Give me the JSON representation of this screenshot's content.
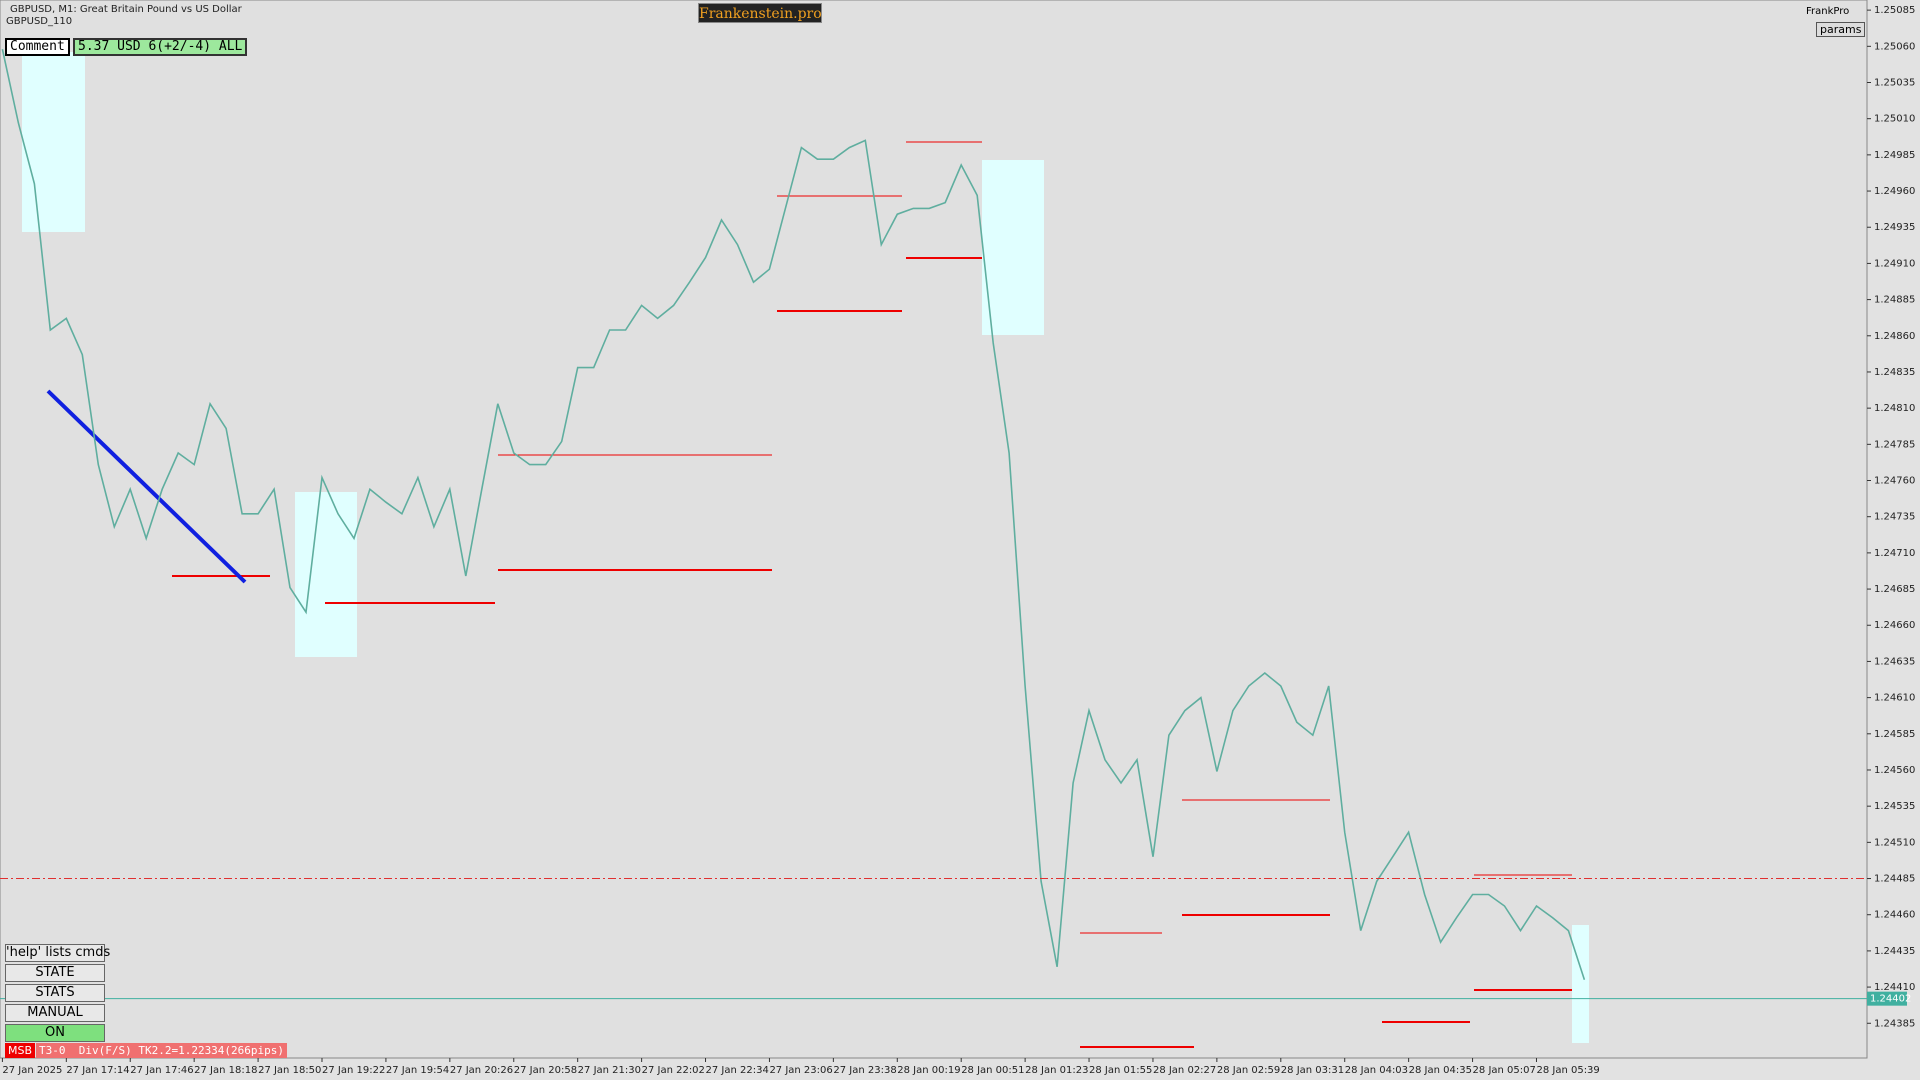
{
  "chart_data": {
    "type": "line",
    "title": "GBPUSD, M1:  Great Britain Pound vs US Dollar",
    "subtitle": "GBPUSD_110",
    "categories": [
      "27 Jan 2025",
      null,
      null,
      null,
      "27 Jan 17:14",
      null,
      null,
      null,
      "27 Jan 17:46",
      null,
      null,
      null,
      "27 Jan 18:18",
      null,
      null,
      null,
      "27 Jan 18:50",
      null,
      null,
      null,
      "27 Jan 19:22",
      null,
      null,
      null,
      "27 Jan 19:54",
      null,
      null,
      null,
      "27 Jan 20:26",
      null,
      null,
      null,
      "27 Jan 20:58",
      null,
      null,
      null,
      "27 Jan 21:30",
      null,
      null,
      null,
      "27 Jan 22:02",
      null,
      null,
      null,
      "27 Jan 22:34",
      null,
      null,
      null,
      "27 Jan 23:06",
      null,
      null,
      null,
      "27 Jan 23:38",
      null,
      null,
      null,
      "28 Jan 00:19",
      null,
      null,
      null,
      "28 Jan 00:51",
      null,
      null,
      null,
      "28 Jan 01:23",
      null,
      null,
      null,
      "28 Jan 01:55",
      null,
      null,
      null,
      "28 Jan 02:27",
      null,
      null,
      null,
      "28 Jan 02:59",
      null,
      null,
      null,
      "28 Jan 03:31",
      null,
      null,
      null,
      "28 Jan 04:03",
      null,
      null,
      null,
      "28 Jan 04:35",
      null,
      null,
      null,
      "28 Jan 05:07",
      null,
      null,
      null,
      "28 Jan 05:39",
      null,
      null,
      null
    ],
    "series": [
      {
        "name": "GBPUSD",
        "color": "#5fae9f",
        "values": [
          1.25058,
          1.25007,
          1.24965,
          1.24864,
          1.24872,
          1.24847,
          1.24771,
          1.24728,
          1.24754,
          1.2472,
          1.24754,
          1.24779,
          1.24771,
          1.24813,
          1.24796,
          1.24737,
          1.24737,
          1.24754,
          1.24686,
          1.24669,
          1.24762,
          1.24737,
          1.2472,
          1.24754,
          1.24745,
          1.24737,
          1.24762,
          1.24728,
          1.24754,
          1.24694,
          1.24754,
          1.24813,
          1.24779,
          1.24771,
          1.24771,
          1.24787,
          1.24838,
          1.24838,
          1.24864,
          1.24864,
          1.24881,
          1.24872,
          1.24881,
          1.24897,
          1.24914,
          1.2494,
          1.24923,
          1.24897,
          1.24906,
          1.24948,
          1.2499,
          1.24982,
          1.24982,
          1.2499,
          1.24995,
          1.24923,
          1.24944,
          1.24948,
          1.24948,
          1.24952,
          1.24978,
          1.24957,
          1.24855,
          1.24779,
          1.24618,
          1.24483,
          1.24424,
          1.24551,
          1.24601,
          1.24567,
          1.24551,
          1.24567,
          1.245,
          1.24584,
          1.24601,
          1.2461,
          1.24559,
          1.24601,
          1.24618,
          1.24627,
          1.24618,
          1.24593,
          1.24584,
          1.24618,
          1.24517,
          1.24449,
          1.24483,
          1.245,
          1.24517,
          1.24474,
          1.24441,
          1.24458,
          1.24474,
          1.24474,
          1.24466,
          1.24449,
          1.24466,
          1.24458,
          1.24449,
          1.24415
        ]
      }
    ],
    "ylim": [
      1.24361,
      1.25092
    ],
    "yticks": [
      1.25085,
      {
        "value": 1.2506,
        "label": "1.25060"
      },
      1.25035,
      {
        "value": 1.2501,
        "label": "1.25010"
      },
      1.24985,
      {
        "value": 1.2496,
        "label": "1.24960"
      },
      1.24935,
      {
        "value": 1.2491,
        "label": "1.24910"
      },
      1.24885,
      {
        "value": 1.2486,
        "label": "1.24860"
      },
      1.24835,
      {
        "value": 1.2481,
        "label": "1.24810"
      },
      1.24785,
      {
        "value": 1.2476,
        "label": "1.24760"
      },
      1.24735,
      {
        "value": 1.2471,
        "label": "1.24710"
      },
      1.24685,
      {
        "value": 1.2466,
        "label": "1.24660"
      },
      1.24635,
      {
        "value": 1.2461,
        "label": "1.24610"
      },
      1.24585,
      {
        "value": 1.2456,
        "label": "1.24560"
      },
      1.24535,
      {
        "value": 1.2451,
        "label": "1.24510"
      },
      1.24485,
      {
        "value": 1.2446,
        "label": "1.24460"
      },
      1.24435,
      {
        "value": 1.2441,
        "label": "1.24410"
      },
      1.24385
    ],
    "price_line": 1.24402,
    "level_line": 1.24485,
    "grid": false
  },
  "ui": {
    "brand": "Frankenstein.pro",
    "account": "FrankPro",
    "params": "params",
    "comment_label": "Comment",
    "comment_value": "5.37 USD 6(+2/-4) ALL",
    "buttons": [
      "'help' lists cmds",
      "STATE",
      "STATS",
      "MANUAL",
      "ON"
    ],
    "status_tag": "MSB",
    "status_text": "T3-0  Div(F/S) TK2.2=1.22334(266pips)"
  }
}
